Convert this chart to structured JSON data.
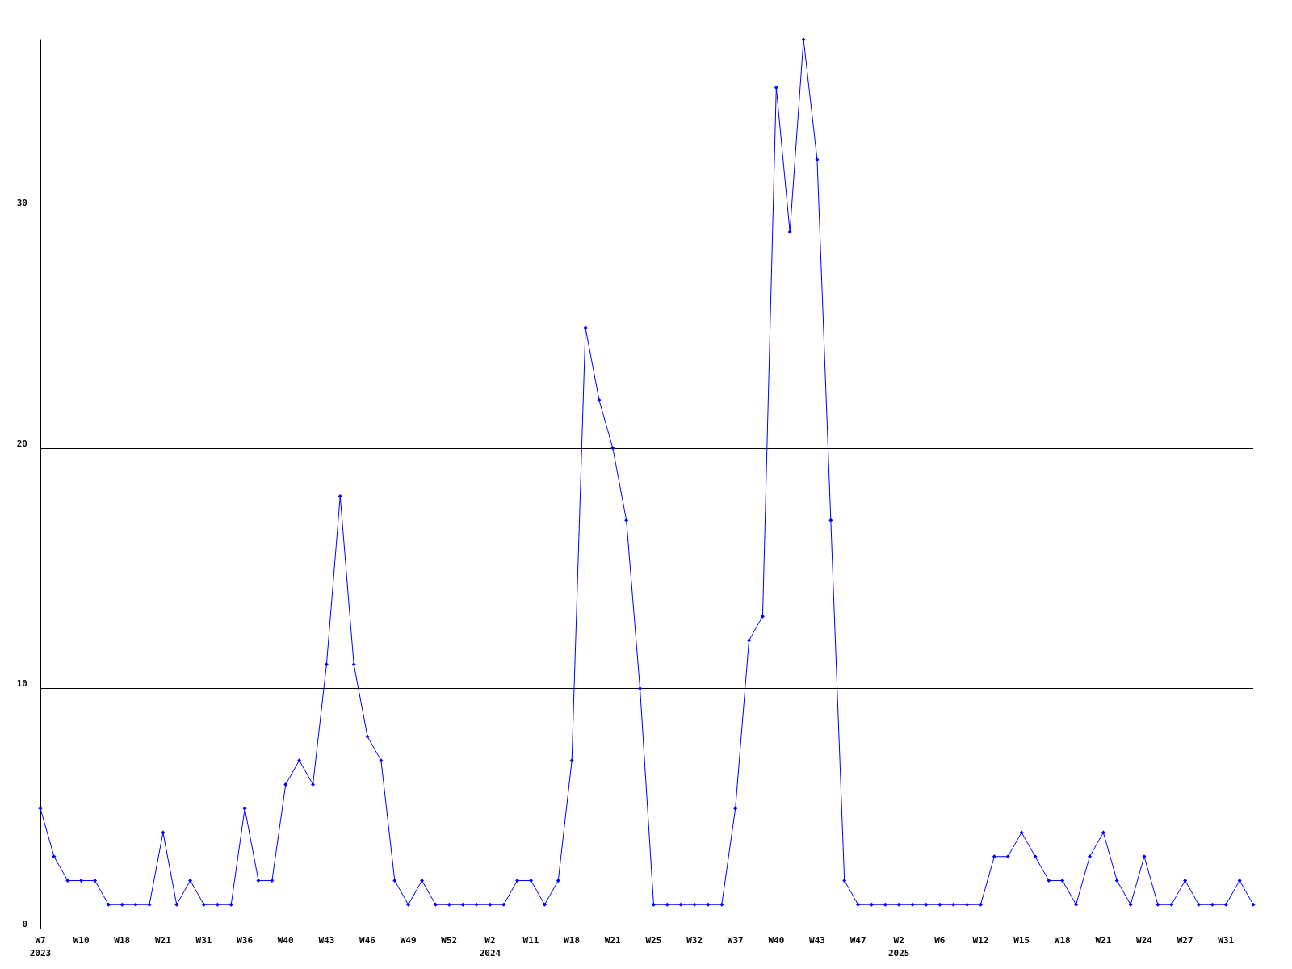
{
  "chart_data": {
    "type": "line",
    "categories": [
      "W7\n2023",
      null,
      null,
      "W10",
      null,
      null,
      "W18",
      null,
      null,
      "W21",
      null,
      null,
      "W31",
      null,
      null,
      "W36",
      null,
      null,
      "W40",
      null,
      null,
      "W43",
      null,
      null,
      "W46",
      null,
      null,
      "W49",
      null,
      null,
      "W52",
      null,
      null,
      "W2\n2024",
      null,
      null,
      "W11",
      null,
      null,
      "W18",
      null,
      null,
      "W21",
      null,
      null,
      "W25",
      null,
      null,
      "W32",
      null,
      null,
      "W37",
      null,
      null,
      "W40",
      null,
      null,
      "W43",
      null,
      null,
      "W47",
      null,
      null,
      "W2\n2025",
      null,
      null,
      "W6",
      null,
      null,
      "W12",
      null,
      null,
      "W15",
      null,
      null,
      "W18",
      null,
      null,
      "W21",
      null,
      null,
      "W24",
      null,
      null,
      "W27",
      null,
      null,
      "W31",
      null,
      null
    ],
    "series": [
      {
        "color": "#0000ff",
        "values": [
          5,
          3,
          2,
          2,
          2,
          1,
          1,
          1,
          1,
          4,
          1,
          2,
          1,
          1,
          1,
          5,
          2,
          2,
          6,
          7,
          6,
          11,
          18,
          11,
          8,
          7,
          2,
          1,
          2,
          1,
          1,
          1,
          1,
          1,
          1,
          2,
          2,
          1,
          2,
          7,
          25,
          22,
          20,
          17,
          10,
          1,
          1,
          1,
          1,
          1,
          1,
          5,
          12,
          13,
          35,
          29,
          37,
          32,
          17,
          2,
          1,
          1,
          1,
          1,
          1,
          1,
          1,
          1,
          1,
          1,
          3,
          3,
          4,
          3,
          2,
          2,
          1,
          3,
          4,
          2,
          1,
          3,
          1,
          1,
          2,
          1,
          1,
          1,
          2,
          1
        ]
      }
    ],
    "ylim": [
      0,
      37
    ],
    "yticks": [
      0,
      10,
      20,
      30
    ],
    "grid": "y",
    "marker": "diamond",
    "line_style": "solid"
  }
}
